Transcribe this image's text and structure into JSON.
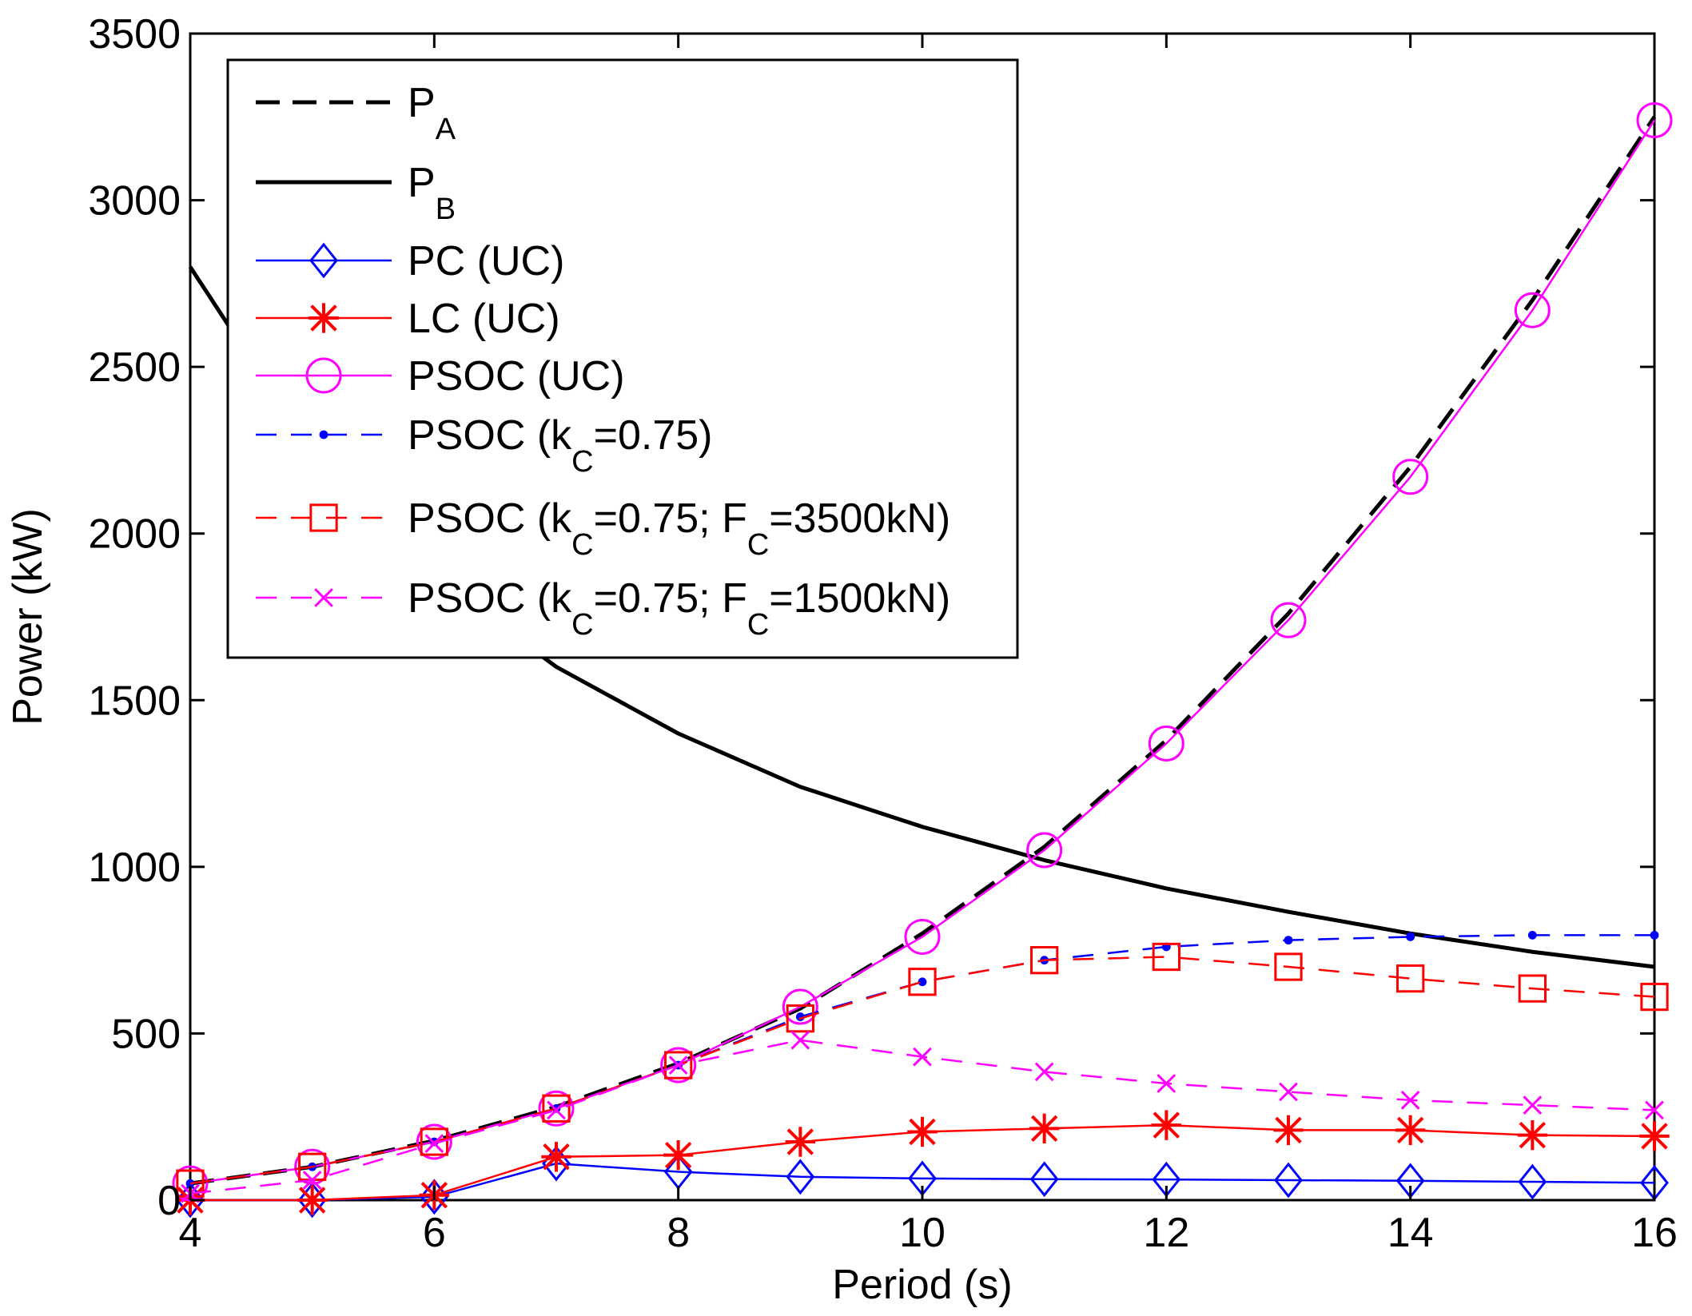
{
  "chart_data": {
    "type": "line",
    "title": "",
    "xlabel": "Period (s)",
    "ylabel": "Power (kW)",
    "xlim": [
      4,
      16
    ],
    "ylim": [
      0,
      3500
    ],
    "xticks": [
      4,
      6,
      8,
      10,
      12,
      14,
      16
    ],
    "yticks": [
      0,
      500,
      1000,
      1500,
      2000,
      2500,
      3000,
      3500
    ],
    "xtick_labels": [
      "4",
      "6",
      "8",
      "10",
      "12",
      "14",
      "16"
    ],
    "ytick_labels": [
      "0",
      "500",
      "1000",
      "1500",
      "2000",
      "2500",
      "3000",
      "3500"
    ],
    "grid": false,
    "legend_position": "top-left",
    "series": [
      {
        "name": "PA",
        "name_main": "P",
        "name_sub": "A",
        "name_after": "",
        "color": "#000000",
        "dash": "dashed",
        "marker": "none",
        "width": "thick",
        "x": [
          4,
          5,
          6,
          7,
          8,
          9,
          10,
          11,
          12,
          13,
          14,
          15,
          16
        ],
        "y": [
          50,
          100,
          178,
          280,
          410,
          575,
          800,
          1060,
          1380,
          1760,
          2200,
          2700,
          3250
        ]
      },
      {
        "name": "PB",
        "name_main": "P",
        "name_sub": "B",
        "name_after": "",
        "color": "#000000",
        "dash": "solid",
        "marker": "none",
        "width": "thick",
        "x": [
          4,
          5,
          6,
          7,
          8,
          9,
          10,
          11,
          12,
          13,
          14,
          15,
          16
        ],
        "y": [
          2800,
          2240,
          1870,
          1600,
          1400,
          1240,
          1120,
          1020,
          935,
          865,
          800,
          745,
          700
        ]
      },
      {
        "name": "PC (UC)",
        "name_main": "PC (UC)",
        "name_sub": "",
        "name_after": "",
        "color": "#0000ff",
        "dash": "solid",
        "marker": "diamond",
        "width": "thin",
        "x": [
          4,
          5,
          6,
          7,
          8,
          9,
          10,
          11,
          12,
          13,
          14,
          15,
          16
        ],
        "y": [
          0,
          0,
          10,
          110,
          85,
          70,
          65,
          63,
          62,
          60,
          58,
          55,
          52
        ]
      },
      {
        "name": "LC (UC)",
        "name_main": "LC (UC)",
        "name_sub": "",
        "name_after": "",
        "color": "#ff0000",
        "dash": "solid",
        "marker": "asterisk",
        "width": "thin",
        "x": [
          4,
          5,
          6,
          7,
          8,
          9,
          10,
          11,
          12,
          13,
          14,
          15,
          16
        ],
        "y": [
          0,
          0,
          15,
          130,
          135,
          175,
          205,
          215,
          225,
          210,
          210,
          195,
          192
        ]
      },
      {
        "name": "PSOC (UC)",
        "name_main": "PSOC (UC)",
        "name_sub": "",
        "name_after": "",
        "color": "#ff00ff",
        "dash": "solid",
        "marker": "circle",
        "width": "thin",
        "x": [
          4,
          5,
          6,
          7,
          8,
          9,
          10,
          11,
          12,
          13,
          14,
          15,
          16
        ],
        "y": [
          50,
          100,
          175,
          275,
          405,
          580,
          790,
          1050,
          1370,
          1740,
          2170,
          2670,
          3240
        ]
      },
      {
        "name": "PSOC (kC=0.75)",
        "name_main": "PSOC (k",
        "name_sub": "C",
        "name_after": "=0.75)",
        "color": "#0000ff",
        "dash": "dashed",
        "marker": "dot",
        "width": "thin",
        "x": [
          4,
          5,
          6,
          7,
          8,
          9,
          10,
          11,
          12,
          13,
          14,
          15,
          16
        ],
        "y": [
          50,
          100,
          175,
          275,
          405,
          550,
          655,
          720,
          760,
          780,
          790,
          795,
          795
        ]
      },
      {
        "name": "PSOC (kC=0.75; FC=3500kN)",
        "name_main": "PSOC (k",
        "name_sub": "C",
        "name_after": "=0.75; F",
        "name_sub2": "C",
        "name_after2": "=3500kN)",
        "color": "#ff0000",
        "dash": "dashed",
        "marker": "square",
        "width": "thin",
        "x": [
          4,
          5,
          6,
          7,
          8,
          9,
          10,
          11,
          12,
          13,
          14,
          15,
          16
        ],
        "y": [
          50,
          100,
          175,
          275,
          405,
          545,
          655,
          720,
          730,
          700,
          665,
          635,
          610
        ]
      },
      {
        "name": "PSOC (kC=0.75; FC=1500kN)",
        "name_main": "PSOC (k",
        "name_sub": "C",
        "name_after": "=0.75; F",
        "name_sub2": "C",
        "name_after2": "=1500kN)",
        "color": "#ff00ff",
        "dash": "dashed",
        "marker": "x",
        "width": "thin",
        "x": [
          4,
          5,
          6,
          7,
          8,
          9,
          10,
          11,
          12,
          13,
          14,
          15,
          16
        ],
        "y": [
          20,
          60,
          170,
          270,
          405,
          480,
          430,
          385,
          350,
          325,
          300,
          285,
          270
        ]
      }
    ]
  }
}
